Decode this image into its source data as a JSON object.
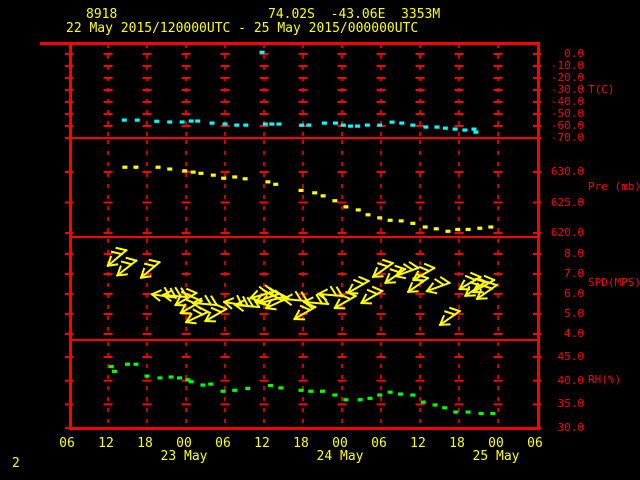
{
  "header": {
    "station_id": "8918",
    "location": "74.02S  -43.06E  3353M",
    "time_range": "22 May 2015/120000UTC - 25 May 2015/000000UTC"
  },
  "footer": {
    "page_number": "2"
  },
  "colors": {
    "background": "#000000",
    "grid": "#ff0000",
    "text_yellow": "#ffff00",
    "temperature": "#00ffff",
    "pressure": "#ffff00",
    "wind": "#ffff00",
    "humidity": "#00ff00"
  },
  "x_axis": {
    "start": "22 May 2015 06UTC",
    "hours_total": 72,
    "tick_interval_hours": 6,
    "hour_labels": [
      "06",
      "12",
      "18",
      "00",
      "06",
      "12",
      "18",
      "00",
      "06",
      "12",
      "18",
      "00",
      "06"
    ],
    "date_labels": [
      {
        "text": "23 May",
        "hour": 18
      },
      {
        "text": "24 May",
        "hour": 42
      },
      {
        "text": "25 May",
        "hour": 66
      }
    ]
  },
  "panels": [
    {
      "id": "temperature",
      "axis_label": "T(C)",
      "tick_labels": [
        "0.0",
        "-10.0",
        "-20.0",
        "-30.0",
        "-40.0",
        "-50.0",
        "-60.0",
        "-70.0"
      ]
    },
    {
      "id": "pressure",
      "axis_label": "Pre (mb)",
      "tick_labels": [
        "630.0",
        "625.0",
        "620.0"
      ]
    },
    {
      "id": "wind_speed",
      "axis_label": "SPD(MPS)",
      "tick_labels": [
        "8.0",
        "7.0",
        "6.0",
        "5.0",
        "4.0"
      ]
    },
    {
      "id": "humidity",
      "axis_label": "RH(%)",
      "tick_labels": [
        "45.0",
        "40.0",
        "35.0",
        "30.0"
      ]
    }
  ],
  "chart_data": [
    {
      "type": "scatter",
      "name": "temperature",
      "ylabel": "T(C)",
      "yticks": [
        0,
        -10,
        -20,
        -30,
        -40,
        -50,
        -60,
        -70
      ],
      "ylim": [
        -70,
        10
      ],
      "x_unit": "hours since 22 May 2015 06UTC",
      "points": [
        [
          8.5,
          -55
        ],
        [
          10.5,
          -55
        ],
        [
          13.5,
          -56
        ],
        [
          15.5,
          -56.6
        ],
        [
          17.4,
          -56.6
        ],
        [
          18.8,
          -55.8
        ],
        [
          19.8,
          -55.8
        ],
        [
          22,
          -57.5
        ],
        [
          24,
          -58.3
        ],
        [
          25.8,
          -59.2
        ],
        [
          27.2,
          -59.2
        ],
        [
          29.7,
          1.5
        ],
        [
          30.2,
          -58.3
        ],
        [
          31.2,
          -58.3
        ],
        [
          32.3,
          -58.3
        ],
        [
          35.8,
          -59.2
        ],
        [
          36.9,
          -59.2
        ],
        [
          39.3,
          -57.5
        ],
        [
          41,
          -57.5
        ],
        [
          42.2,
          -59.2
        ],
        [
          43.3,
          -60
        ],
        [
          44.4,
          -60
        ],
        [
          45.9,
          -59.2
        ],
        [
          47.8,
          -59.2
        ],
        [
          49.7,
          -56.7
        ],
        [
          51.2,
          -57.5
        ],
        [
          52.9,
          -59.2
        ],
        [
          54.9,
          -60.8
        ],
        [
          56.6,
          -60.8
        ],
        [
          57.9,
          -61.7
        ],
        [
          59.4,
          -62.5
        ],
        [
          60.9,
          -63.3
        ],
        [
          62.3,
          -62.5
        ],
        [
          62.6,
          -65
        ]
      ]
    },
    {
      "type": "scatter",
      "name": "pressure",
      "ylabel": "Pre (mb)",
      "yticks": [
        630,
        625,
        620
      ],
      "ylim": [
        619,
        635.5
      ],
      "x_unit": "hours since 22 May 2015 06UTC",
      "points": [
        [
          8.6,
          630.8
        ],
        [
          10.3,
          630.8
        ],
        [
          13.7,
          630.8
        ],
        [
          15.5,
          630.5
        ],
        [
          17.8,
          630.2
        ],
        [
          19.1,
          630
        ],
        [
          20.3,
          629.8
        ],
        [
          22.2,
          629.5
        ],
        [
          23.8,
          629
        ],
        [
          25.5,
          629.2
        ],
        [
          27.1,
          628.9
        ],
        [
          30.6,
          628.4
        ],
        [
          31.8,
          628
        ],
        [
          35.7,
          627
        ],
        [
          37.8,
          626.6
        ],
        [
          39.1,
          626.1
        ],
        [
          40.9,
          625.3
        ],
        [
          42.6,
          624.3
        ],
        [
          44.5,
          623.8
        ],
        [
          46,
          623
        ],
        [
          47.8,
          622.5
        ],
        [
          49.4,
          622.1
        ],
        [
          51.1,
          622
        ],
        [
          52.9,
          621.6
        ],
        [
          54.8,
          621
        ],
        [
          56.5,
          620.7
        ],
        [
          58.3,
          620.3
        ],
        [
          59.8,
          620.6
        ],
        [
          61.4,
          620.6
        ],
        [
          63.2,
          620.8
        ],
        [
          64.9,
          621
        ]
      ]
    },
    {
      "type": "wind_barbs",
      "name": "wind_speed",
      "ylabel": "SPD(MPS)",
      "yticks": [
        8,
        7,
        6,
        5,
        4
      ],
      "ylim": [
        3.7,
        8.85
      ],
      "x_unit": "hours since 22 May 2015 06UTC",
      "dir_note": "screen degrees: 0=arrow points right, 90=down, 180=left",
      "barbs": [
        [
          7.4,
          7.8,
          140
        ],
        [
          8.9,
          7.3,
          142
        ],
        [
          12.5,
          7.2,
          140
        ],
        [
          14.6,
          5.9,
          188
        ],
        [
          16.3,
          5.9,
          185
        ],
        [
          18,
          5.75,
          150
        ],
        [
          18.8,
          5.35,
          150
        ],
        [
          19.7,
          4.85,
          155
        ],
        [
          20.9,
          5.5,
          185
        ],
        [
          22.6,
          4.95,
          150
        ],
        [
          25.7,
          5.5,
          190
        ],
        [
          27.4,
          5.4,
          185
        ],
        [
          29.7,
          5.95,
          165
        ],
        [
          30.5,
          5.8,
          160
        ],
        [
          31.2,
          5.7,
          165
        ],
        [
          32,
          5.55,
          155
        ],
        [
          34.8,
          5.7,
          185
        ],
        [
          36.3,
          5.05,
          150
        ],
        [
          38,
          5.55,
          185
        ],
        [
          40.2,
          5.95,
          185
        ],
        [
          42.5,
          5.6,
          150
        ],
        [
          44.5,
          6.35,
          150
        ],
        [
          46.6,
          5.85,
          150
        ],
        [
          48.3,
          7.2,
          145
        ],
        [
          50.2,
          6.9,
          145
        ],
        [
          52,
          7.1,
          160
        ],
        [
          53.7,
          6.45,
          145
        ],
        [
          54.6,
          7,
          150
        ],
        [
          56.8,
          6.35,
          160
        ],
        [
          58.6,
          4.8,
          145
        ],
        [
          61.7,
          6.55,
          150
        ],
        [
          62.5,
          6.25,
          145
        ],
        [
          63.8,
          6.4,
          150
        ],
        [
          64.3,
          6.1,
          145
        ]
      ]
    },
    {
      "type": "scatter",
      "name": "relative_humidity",
      "ylabel": "RH(%)",
      "yticks": [
        45,
        40,
        35,
        30
      ],
      "ylim": [
        30,
        48.5
      ],
      "x_unit": "hours since 22 May 2015 06UTC",
      "points": [
        [
          6.5,
          43
        ],
        [
          7,
          42
        ],
        [
          9,
          43.5
        ],
        [
          10.3,
          43.5
        ],
        [
          12,
          41
        ],
        [
          14,
          40.6
        ],
        [
          15.7,
          40.8
        ],
        [
          17,
          40.6
        ],
        [
          18.3,
          40.2
        ],
        [
          18.8,
          39.8
        ],
        [
          20.6,
          39.1
        ],
        [
          21.8,
          39.3
        ],
        [
          23.7,
          37.8
        ],
        [
          25.5,
          38
        ],
        [
          27.5,
          38.4
        ],
        [
          31,
          39
        ],
        [
          32.6,
          38.5
        ],
        [
          35.7,
          38
        ],
        [
          37.2,
          37.8
        ],
        [
          39,
          37.8
        ],
        [
          40.9,
          37
        ],
        [
          42.6,
          36
        ],
        [
          44.8,
          36
        ],
        [
          46.3,
          36.3
        ],
        [
          47.8,
          37
        ],
        [
          49.4,
          37.6
        ],
        [
          51,
          37.2
        ],
        [
          52.9,
          37
        ],
        [
          54.5,
          35.5
        ],
        [
          56.3,
          34.9
        ],
        [
          57.8,
          34.3
        ],
        [
          59.5,
          33.4
        ],
        [
          61.4,
          33.4
        ],
        [
          63.4,
          33.1
        ],
        [
          65.2,
          33.1
        ]
      ]
    }
  ]
}
